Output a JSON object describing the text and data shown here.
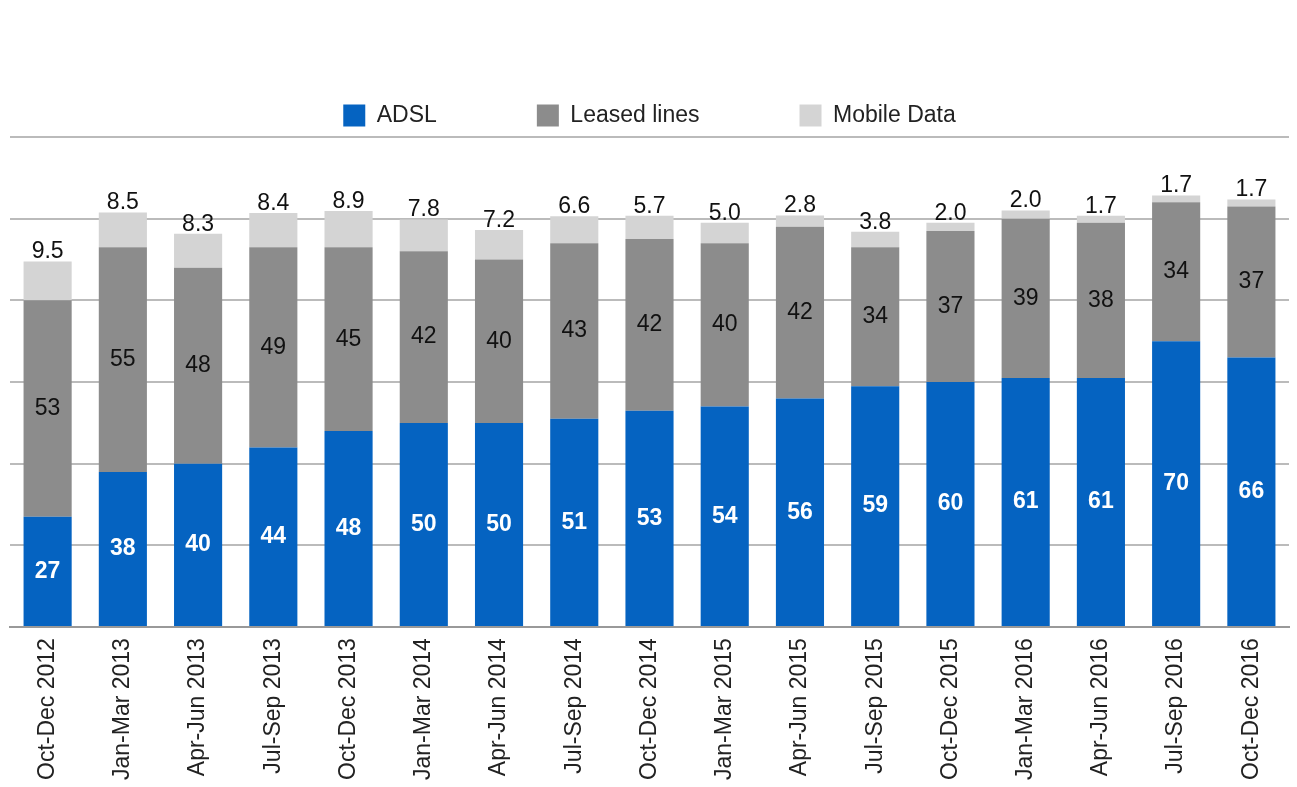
{
  "chart_data": {
    "type": "bar",
    "stacked": true,
    "categories": [
      "Oct-Dec 2012",
      "Jan-Mar 2013",
      "Apr-Jun 2013",
      "Jul-Sep 2013",
      "Oct-Dec 2013",
      "Jan-Mar 2014",
      "Apr-Jun 2014",
      "Jul-Sep 2014",
      "Oct-Dec 2014",
      "Jan-Mar 2015",
      "Apr-Jun 2015",
      "Jul-Sep 2015",
      "Oct-Dec 2015",
      "Jan-Mar 2016",
      "Apr-Jun 2016",
      "Jul-Sep 2016",
      "Oct-Dec 2016"
    ],
    "series": [
      {
        "name": "ADSL",
        "color": "#0563c1",
        "values": [
          27,
          38,
          40,
          44,
          48,
          50,
          50,
          51,
          53,
          54,
          56,
          59,
          60,
          61,
          61,
          70,
          66
        ],
        "value_labels": [
          "27",
          "38",
          "40",
          "44",
          "48",
          "50",
          "50",
          "51",
          "53",
          "54",
          "56",
          "59",
          "60",
          "61",
          "61",
          "70",
          "66"
        ]
      },
      {
        "name": "Leased lines",
        "color": "#8c8c8c",
        "values": [
          53,
          55,
          48,
          49,
          45,
          42,
          40,
          43,
          42,
          40,
          42,
          34,
          37,
          39,
          38,
          34,
          37
        ],
        "value_labels": [
          "53",
          "55",
          "48",
          "49",
          "45",
          "42",
          "40",
          "43",
          "42",
          "40",
          "42",
          "34",
          "37",
          "39",
          "38",
          "34",
          "37"
        ]
      },
      {
        "name": "Mobile Data",
        "color": "#d4d4d4",
        "values": [
          9.5,
          8.5,
          8.3,
          8.4,
          8.9,
          7.8,
          7.2,
          6.6,
          5.7,
          5.0,
          2.8,
          3.8,
          2.0,
          2.0,
          1.7,
          1.7,
          1.7
        ],
        "value_labels": [
          "9.5",
          "8.5",
          "8.3",
          "8.4",
          "8.9",
          "7.8",
          "7.2",
          "6.6",
          "5.7",
          "5.0",
          "2.8",
          "3.8",
          "2.0",
          "2.0",
          "1.7",
          "1.7",
          "1.7"
        ]
      }
    ],
    "ylim": [
      0,
      120
    ],
    "yticks": [
      {
        "value": 0,
        "label": null
      },
      {
        "value": 20,
        "label": null
      },
      {
        "value": 40,
        "label": null
      },
      {
        "value": 60,
        "label": null
      },
      {
        "value": 80,
        "label": null
      },
      {
        "value": 100,
        "label": null
      },
      {
        "value": 120,
        "label": null
      }
    ],
    "tick_labels": "x",
    "grid": "y",
    "legend": "top"
  }
}
